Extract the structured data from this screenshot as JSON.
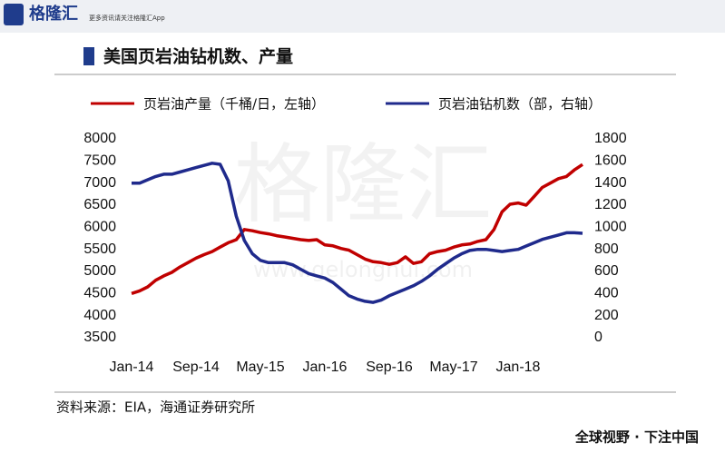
{
  "header": {
    "logo": "格隆汇",
    "tagline": "更多资讯请关注格隆汇App"
  },
  "watermark": {
    "text": "格隆汇",
    "url": "www.gelonghui.com"
  },
  "footer": "全球视野 · 下注中国",
  "chart_data": {
    "type": "line",
    "title": "美国页岩油钻机数、产量",
    "source": "资料来源：EIA，海通证券研究所",
    "categories": [
      "Jan-14",
      null,
      null,
      null,
      null,
      null,
      null,
      null,
      "Sep-14",
      null,
      null,
      null,
      null,
      null,
      null,
      null,
      "May-15",
      null,
      null,
      null,
      null,
      null,
      null,
      null,
      "Jan-16",
      null,
      null,
      null,
      null,
      null,
      null,
      null,
      "Sep-16",
      null,
      null,
      null,
      null,
      null,
      null,
      null,
      "May-17",
      null,
      null,
      null,
      null,
      null,
      null,
      null,
      "Jan-18",
      null,
      null,
      null,
      null,
      null,
      null,
      null,
      null
    ],
    "series": [
      {
        "name": "页岩油产量（千桶/日，左轴）",
        "color": "#c00000",
        "axis": "y",
        "values": [
          4500,
          4560,
          4650,
          4800,
          4900,
          4980,
          5100,
          5200,
          5300,
          5380,
          5450,
          5550,
          5650,
          5720,
          5950,
          5920,
          5880,
          5850,
          5810,
          5780,
          5750,
          5720,
          5700,
          5720,
          5600,
          5580,
          5520,
          5480,
          5380,
          5280,
          5220,
          5200,
          5160,
          5200,
          5330,
          5180,
          5220,
          5400,
          5450,
          5480,
          5550,
          5600,
          5620,
          5680,
          5720,
          5950,
          6350,
          6520,
          6550,
          6500,
          6700,
          6900,
          7000,
          7100,
          7150,
          7300,
          7420
        ]
      },
      {
        "name": "页岩油钻机数（部，右轴）",
        "color": "#1f2a8c",
        "axis": "y2",
        "values": [
          1400,
          1400,
          1430,
          1460,
          1480,
          1480,
          1500,
          1520,
          1540,
          1560,
          1580,
          1570,
          1420,
          1100,
          880,
          760,
          700,
          680,
          680,
          680,
          660,
          620,
          580,
          560,
          540,
          500,
          440,
          380,
          350,
          330,
          320,
          340,
          380,
          410,
          440,
          470,
          510,
          560,
          620,
          670,
          720,
          760,
          790,
          800,
          800,
          790,
          780,
          790,
          800,
          830,
          860,
          890,
          910,
          930,
          950,
          950,
          945
        ]
      }
    ],
    "ylim": [
      3500,
      8000
    ],
    "yticks": [
      3500,
      4000,
      4500,
      5000,
      5500,
      6000,
      6500,
      7000,
      7500,
      8000
    ],
    "y2lim": [
      0,
      1800
    ],
    "y2ticks": [
      0,
      200,
      400,
      600,
      800,
      1000,
      1200,
      1400,
      1600,
      1800
    ],
    "grid": false,
    "legend": "top"
  }
}
